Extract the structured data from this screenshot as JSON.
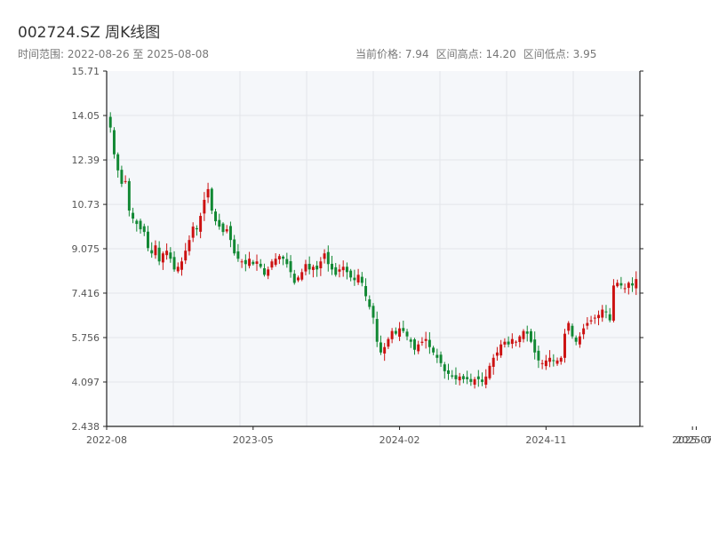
{
  "header": {
    "title": "002724.SZ 周K线图",
    "range_prefix": "时间范围: ",
    "range_start": "2022-08-26",
    "range_sep": " 至 ",
    "range_end": "2025-08-08",
    "current_label": "当前价格: ",
    "current_value": "7.94",
    "high_label": "区间高点: ",
    "high_value": "14.20",
    "low_label": "区间低点: ",
    "low_value": "3.95"
  },
  "colors": {
    "up": "#cc1111",
    "down": "#118833",
    "plot_bg": "#f5f7fa",
    "grid": "#e3e6ea",
    "axis": "#222222"
  },
  "chart_data": {
    "type": "candlestick",
    "title": "002724.SZ 周K线图",
    "ylim": [
      2.438,
      15.71
    ],
    "y_ticks": [
      "2.438",
      "4.097",
      "5.756",
      "7.416",
      "9.075",
      "10.73",
      "12.39",
      "14.05",
      "15.71"
    ],
    "x_ticks": [
      "2022-08",
      "2023-05",
      "2024-02",
      "2024-11",
      "2025-07",
      "2025-08"
    ],
    "x_tick_weeks": [
      0,
      39,
      78,
      117,
      156,
      157
    ],
    "grid": true,
    "closes": [
      13.6,
      12.6,
      12.0,
      11.5,
      11.6,
      10.5,
      10.2,
      10.0,
      9.8,
      9.7,
      9.1,
      8.9,
      9.2,
      8.6,
      8.9,
      9.0,
      8.7,
      8.3,
      8.4,
      8.6,
      9.0,
      9.4,
      9.9,
      9.8,
      10.3,
      10.9,
      11.3,
      10.5,
      10.1,
      9.9,
      9.7,
      9.8,
      9.4,
      8.9,
      8.7,
      8.6,
      8.5,
      8.7,
      8.5,
      8.6,
      8.4,
      8.1,
      8.3,
      8.6,
      8.7,
      8.8,
      8.7,
      8.5,
      8.2,
      7.8,
      8.0,
      8.2,
      8.5,
      8.3,
      8.4,
      8.3,
      8.6,
      8.9,
      8.5,
      8.3,
      8.1,
      8.3,
      8.4,
      8.2,
      8.0,
      7.9,
      8.1,
      7.8,
      7.3,
      6.9,
      6.5,
      5.6,
      5.2,
      5.4,
      5.7,
      6.0,
      5.9,
      6.1,
      6.0,
      5.8,
      5.6,
      5.3,
      5.5,
      5.6,
      5.7,
      5.4,
      5.2,
      5.0,
      4.8,
      4.5,
      4.4,
      4.3,
      4.2,
      4.3,
      4.2,
      4.2,
      4.1,
      4.2,
      4.2,
      4.1,
      4.3,
      4.7,
      5.0,
      5.2,
      5.5,
      5.6,
      5.5,
      5.7,
      5.6,
      5.8,
      6.0,
      5.9,
      5.6,
      5.2,
      4.9,
      4.8,
      4.9,
      5.0,
      4.9,
      4.9,
      5.0,
      5.9,
      6.3,
      5.8,
      5.6,
      5.8,
      6.1,
      6.3,
      6.4,
      6.5,
      6.6,
      6.8,
      6.7,
      6.4,
      7.7,
      7.8,
      7.7,
      7.6,
      7.8,
      7.7,
      7.94
    ],
    "highs_note": "",
    "current_price": 7.94,
    "range_high": 14.2,
    "range_low": 3.95,
    "date_start": "2022-08-26",
    "date_end": "2025-08-08"
  }
}
